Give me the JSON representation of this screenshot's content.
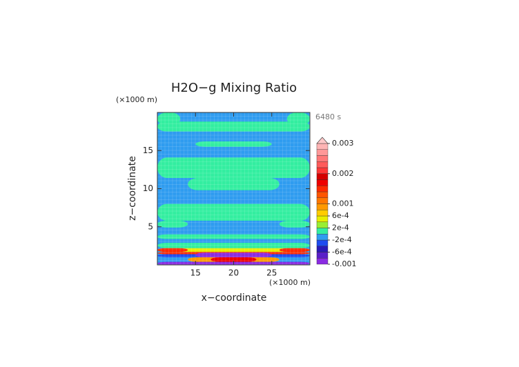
{
  "chart_data": {
    "type": "contour",
    "title": "H2O−g Mixing Ratio",
    "time_label": "6480 s",
    "x_label": "x−coordinate",
    "y_label": "z−coordinate",
    "x_unit": "(×1000 m)",
    "y_unit": "(×1000 m)",
    "xlim": [
      10,
      30
    ],
    "xticks": [
      15,
      20,
      25
    ],
    "ylim": [
      0,
      20
    ],
    "yticks": [
      5,
      10,
      15
    ],
    "colorbar": {
      "lim": [
        -0.001,
        0.003
      ],
      "colors": [
        "#8a2be2",
        "#5a1fc8",
        "#2a1ab8",
        "#1e4cf0",
        "#2f9cf0",
        "#33eea0",
        "#99ee33",
        "#e8ee00",
        "#ffcc00",
        "#ff9900",
        "#ff7700",
        "#ff5500",
        "#ff2a00",
        "#ee0000",
        "#d40000",
        "#ff3838",
        "#ff5a5a",
        "#ff7878",
        "#ff9898",
        "#ffb4b4"
      ],
      "extend_color": "#ffc8c8",
      "ticks": [
        0.003,
        0.002,
        0.001,
        {
          "value": 0.0006,
          "label": "6e-4"
        },
        {
          "value": 0.0002,
          "label": "2e-4"
        },
        {
          "value": -0.0002,
          "label": "-2e-4"
        },
        {
          "value": -0.0006,
          "label": "-6e-4"
        },
        -0.001
      ]
    },
    "regions": [
      {
        "x": [
          10,
          30
        ],
        "z": [
          0,
          20
        ],
        "value": -0.0001
      },
      {
        "x": [
          10,
          13
        ],
        "z": [
          18.3,
          20
        ],
        "value": 0.0001
      },
      {
        "x": [
          27,
          30
        ],
        "z": [
          18.3,
          20
        ],
        "value": 0.0001
      },
      {
        "x": [
          10,
          30
        ],
        "z": [
          17.5,
          18.8
        ],
        "value": 0.0001
      },
      {
        "x": [
          15,
          25
        ],
        "z": [
          15.5,
          16.2
        ],
        "value": 0.0001
      },
      {
        "x": [
          10,
          30
        ],
        "z": [
          11.4,
          14.1
        ],
        "value": 0.0001
      },
      {
        "x": [
          14,
          26
        ],
        "z": [
          9.8,
          11.4
        ],
        "value": 0.0001
      },
      {
        "x": [
          10,
          30
        ],
        "z": [
          5.8,
          8
        ],
        "value": 0.0001
      },
      {
        "x": [
          10,
          14
        ],
        "z": [
          4.9,
          5.8
        ],
        "value": 0.0001
      },
      {
        "x": [
          26,
          30
        ],
        "z": [
          4.9,
          5.8
        ],
        "value": 0.0001
      },
      {
        "x": [
          10,
          30
        ],
        "z": [
          3.4,
          4
        ],
        "value": 0.0001
      },
      {
        "x": [
          10,
          30
        ],
        "z": [
          2.2,
          2.9
        ],
        "value": 0.0001
      },
      {
        "x": [
          10,
          30
        ],
        "z": [
          1.7,
          2.2
        ],
        "value": 0.0005
      },
      {
        "x": [
          10,
          14
        ],
        "z": [
          1.7,
          2.2
        ],
        "value": 0.0015
      },
      {
        "x": [
          26,
          30
        ],
        "z": [
          1.7,
          2.2
        ],
        "value": 0.0015
      },
      {
        "x": [
          10,
          30
        ],
        "z": [
          1.4,
          1.7
        ],
        "value": 0.0015
      },
      {
        "x": [
          10,
          30
        ],
        "z": [
          1,
          1.4
        ],
        "value": -0.0003
      },
      {
        "x": [
          15,
          25
        ],
        "z": [
          1,
          1.6
        ],
        "value": -0.0009
      },
      {
        "x": [
          14,
          26
        ],
        "z": [
          0.4,
          1
        ],
        "value": 0.0009
      },
      {
        "x": [
          17,
          23
        ],
        "z": [
          0.4,
          1
        ],
        "value": 0.0017
      },
      {
        "x": [
          10,
          30
        ],
        "z": [
          0,
          0.4
        ],
        "value": -0.0009
      }
    ]
  }
}
